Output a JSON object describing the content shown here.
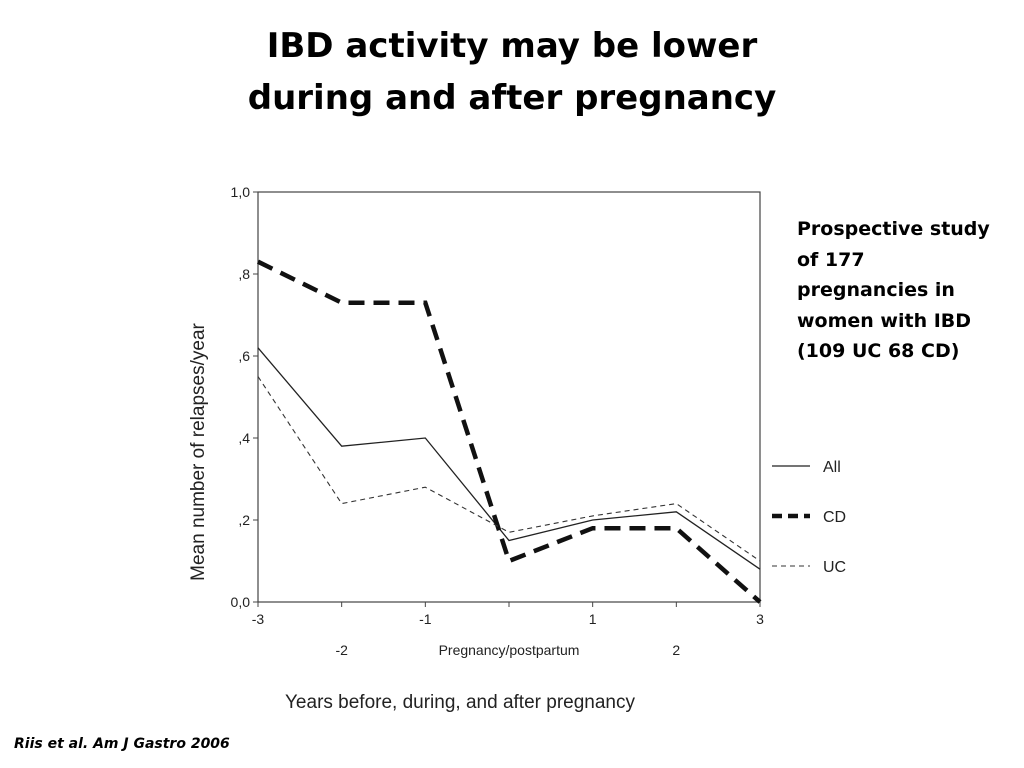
{
  "title": {
    "line1": "IBD activity may be lower",
    "line2": "during and after pregnancy"
  },
  "note_lines": [
    "Prospective study",
    "of 177",
    "pregnancies in",
    "women with IBD",
    "(109 UC 68 CD)"
  ],
  "citation": "Riis et al. Am J Gastro 2006",
  "chart_data": {
    "type": "line",
    "ylabel": "Mean number of relapses/year",
    "xlabel": "Years before, during, and after pregnancy",
    "x": [
      -3,
      -2,
      -1,
      0,
      1,
      2,
      3
    ],
    "xlim": [
      -3,
      3
    ],
    "ylim": [
      0,
      1.0
    ],
    "y_ticks": [
      {
        "value": 0,
        "label": "0,0"
      },
      {
        "value": 0.2,
        "label": ",2"
      },
      {
        "value": 0.4,
        "label": ",4"
      },
      {
        "value": 0.6,
        "label": ",6"
      },
      {
        "value": 0.8,
        "label": ",8"
      },
      {
        "value": 1.0,
        "label": "1,0"
      }
    ],
    "x_tick_labels": [
      {
        "value": -3,
        "label": "-3",
        "row": 1
      },
      {
        "value": -2,
        "label": "-2",
        "row": 2
      },
      {
        "value": -1,
        "label": "-1",
        "row": 1
      },
      {
        "value": 0,
        "label": "Pregnancy/postpartum",
        "row": 2
      },
      {
        "value": 1,
        "label": "1",
        "row": 1
      },
      {
        "value": 2,
        "label": "2",
        "row": 2
      },
      {
        "value": 3,
        "label": "3",
        "row": 1
      }
    ],
    "series": [
      {
        "name": "All",
        "style": "solid-thin",
        "color": "#222222",
        "values": [
          0.62,
          0.38,
          0.4,
          0.15,
          0.2,
          0.22,
          0.08
        ]
      },
      {
        "name": "CD",
        "style": "dashed-thick",
        "color": "#111111",
        "values": [
          0.83,
          0.73,
          0.73,
          0.1,
          0.18,
          0.18,
          0.0
        ]
      },
      {
        "name": "UC",
        "style": "dashed-thin",
        "color": "#333333",
        "values": [
          0.55,
          0.24,
          0.28,
          0.17,
          0.21,
          0.24,
          0.1
        ]
      }
    ],
    "legend_position": "right",
    "grid": false
  }
}
